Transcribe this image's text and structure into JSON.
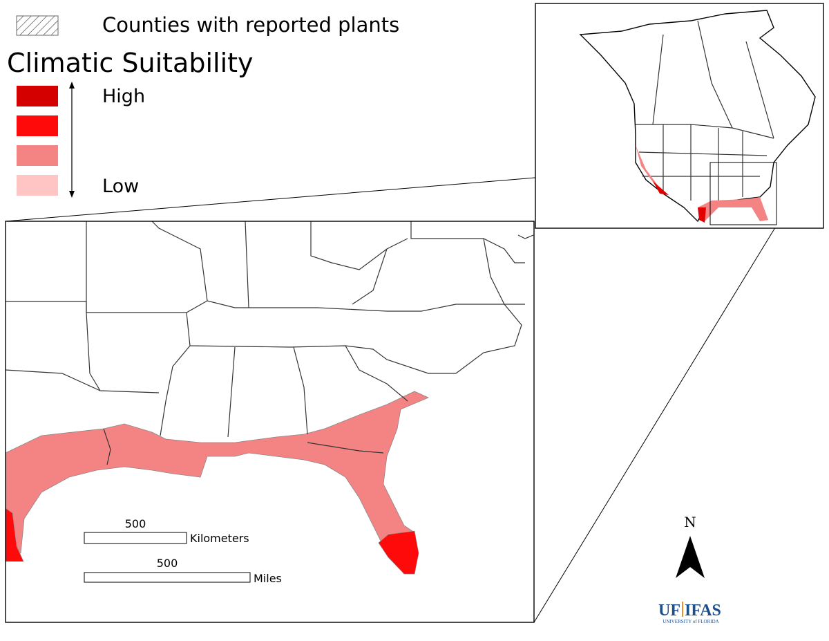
{
  "legend": {
    "hatch_label": "Counties with reported plants",
    "title": "Climatic Suitability",
    "high": "High",
    "low": "Low"
  },
  "scale_bars": [
    {
      "value": 500,
      "unit": "Kilometers"
    },
    {
      "value": 500,
      "unit": "Miles"
    }
  ],
  "north_label": "N",
  "logo": {
    "left": "UF",
    "right": "IFAS",
    "subtitle": "UNIVERSITY of FLORIDA"
  }
}
